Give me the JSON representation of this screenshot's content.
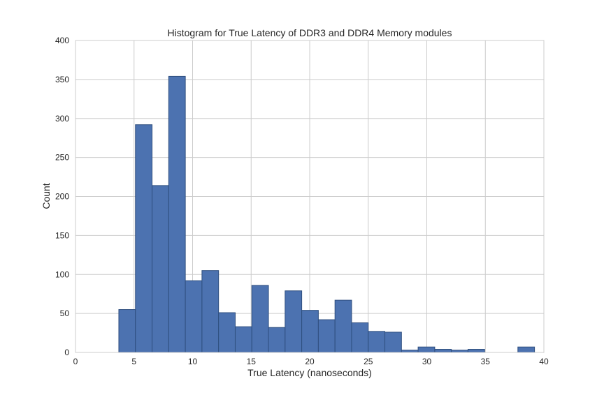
{
  "chart_data": {
    "type": "bar",
    "title": "Histogram for True Latency of DDR3 and DDR4 Memory modules",
    "xlabel": "True Latency (nanoseconds)",
    "ylabel": "Count",
    "xlim": [
      0,
      40
    ],
    "ylim": [
      0,
      400
    ],
    "xticks": [
      0,
      5,
      10,
      15,
      20,
      25,
      30,
      35,
      40
    ],
    "yticks": [
      0,
      50,
      100,
      150,
      200,
      250,
      300,
      350,
      400
    ],
    "grid": true,
    "legend": "none",
    "bar_color": "#4C72B0",
    "bins": [
      {
        "x0": 3.7,
        "x1": 5.12,
        "count": 55
      },
      {
        "x0": 5.12,
        "x1": 6.54,
        "count": 292
      },
      {
        "x0": 6.54,
        "x1": 7.96,
        "count": 214
      },
      {
        "x0": 7.96,
        "x1": 9.38,
        "count": 354
      },
      {
        "x0": 9.38,
        "x1": 10.8,
        "count": 92
      },
      {
        "x0": 10.8,
        "x1": 12.22,
        "count": 105
      },
      {
        "x0": 12.22,
        "x1": 13.64,
        "count": 51
      },
      {
        "x0": 13.64,
        "x1": 15.06,
        "count": 33
      },
      {
        "x0": 15.06,
        "x1": 16.48,
        "count": 86
      },
      {
        "x0": 16.48,
        "x1": 17.9,
        "count": 32
      },
      {
        "x0": 17.9,
        "x1": 19.32,
        "count": 79
      },
      {
        "x0": 19.32,
        "x1": 20.74,
        "count": 54
      },
      {
        "x0": 20.74,
        "x1": 22.16,
        "count": 42
      },
      {
        "x0": 22.16,
        "x1": 23.58,
        "count": 67
      },
      {
        "x0": 23.58,
        "x1": 25.0,
        "count": 38
      },
      {
        "x0": 25.0,
        "x1": 26.42,
        "count": 27
      },
      {
        "x0": 26.42,
        "x1": 27.84,
        "count": 26
      },
      {
        "x0": 27.84,
        "x1": 29.26,
        "count": 3
      },
      {
        "x0": 29.26,
        "x1": 30.68,
        "count": 7
      },
      {
        "x0": 30.68,
        "x1": 32.1,
        "count": 4
      },
      {
        "x0": 32.1,
        "x1": 33.52,
        "count": 3
      },
      {
        "x0": 33.52,
        "x1": 34.94,
        "count": 4
      },
      {
        "x0": 34.94,
        "x1": 36.36,
        "count": 0
      },
      {
        "x0": 36.36,
        "x1": 37.78,
        "count": 0
      },
      {
        "x0": 37.78,
        "x1": 39.2,
        "count": 7
      }
    ]
  }
}
